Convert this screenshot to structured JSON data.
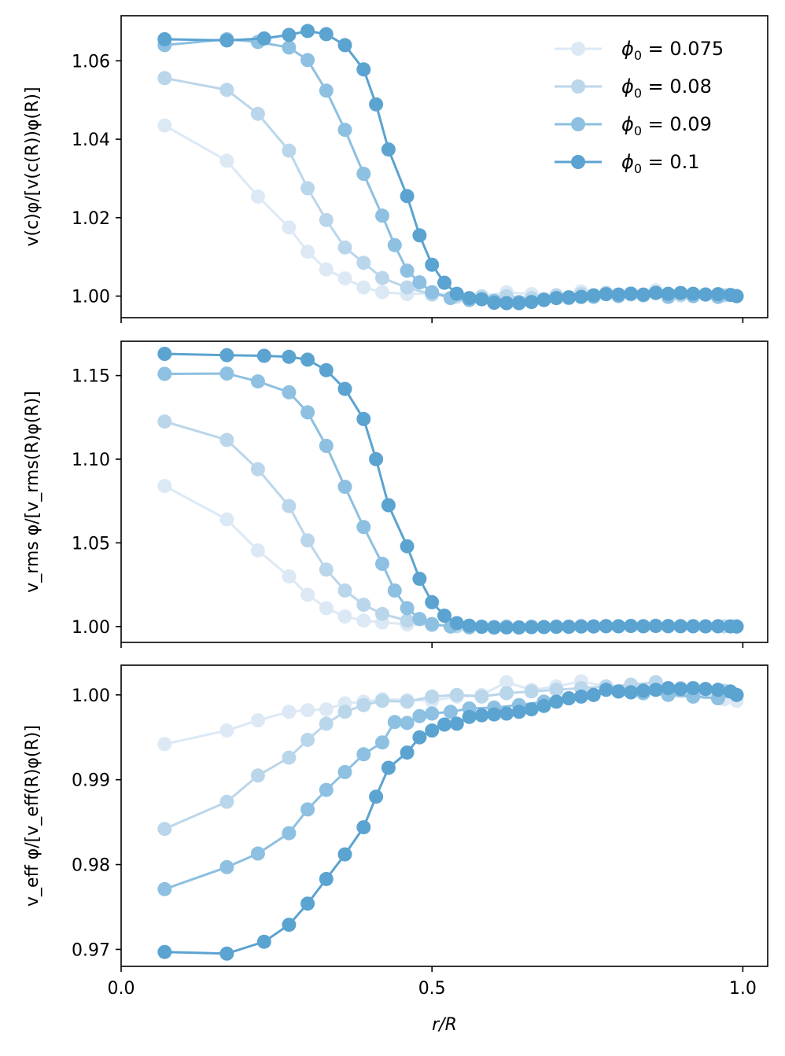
{
  "chart_data": [
    {
      "type": "line",
      "ylabel": "v(c)φ/[v(c(R))φ(R)]",
      "ylim": [
        0.9945,
        1.0715
      ],
      "yticks": [
        "1.00",
        "1.02",
        "1.04",
        "1.06"
      ],
      "ytick_values": [
        1.0,
        1.02,
        1.04,
        1.06
      ],
      "legend_position": "top-right",
      "legend": [
        {
          "label": "ϕ0 = 0.075",
          "base": "ϕ",
          "sub": "0",
          "value": " = 0.075"
        },
        {
          "label": "ϕ0 = 0.08",
          "base": "ϕ",
          "sub": "0",
          "value": " = 0.08"
        },
        {
          "label": "ϕ0 = 0.09",
          "base": "ϕ",
          "sub": "0",
          "value": " = 0.09"
        },
        {
          "label": "ϕ0 = 0.1",
          "base": "ϕ",
          "sub": "0",
          "value": " = 0.1"
        }
      ],
      "series": [
        {
          "name": "ϕ0 = 0.075",
          "color": "#dce9f5",
          "x": [
            0.07,
            0.17,
            0.22,
            0.27,
            0.3,
            0.33,
            0.36,
            0.39,
            0.42,
            0.46,
            0.5,
            0.54,
            0.58,
            0.62,
            0.66,
            0.7,
            0.74,
            0.78,
            0.82,
            0.86,
            0.9,
            0.94,
            0.97,
            0.99
          ],
          "y": [
            1.0435,
            1.0345,
            1.0254,
            1.0175,
            1.0113,
            1.0068,
            1.0045,
            1.0022,
            1.001,
            1.0005,
            1.0008,
            1.0002,
            1.0,
            1.001,
            1.0005,
            1.0002,
            1.0012,
            1.0006,
            1.0008,
            1.0015,
            1.0008,
            1.0005,
            1.0002,
            1.0
          ]
        },
        {
          "name": "ϕ0 = 0.08",
          "color": "#bad6eb",
          "x": [
            0.07,
            0.17,
            0.22,
            0.27,
            0.3,
            0.33,
            0.36,
            0.39,
            0.42,
            0.46,
            0.5,
            0.54,
            0.58,
            0.62,
            0.66,
            0.7,
            0.74,
            0.78,
            0.82,
            0.86,
            0.9,
            0.94,
            0.97,
            0.99
          ],
          "y": [
            1.0556,
            1.0526,
            1.0465,
            1.0371,
            1.0275,
            1.0194,
            1.0124,
            1.0085,
            1.0046,
            1.0022,
            1.0004,
            0.9999,
            0.9998,
            1.0,
            0.9995,
            1.0002,
            1.0005,
            1.0008,
            1.0004,
            1.001,
            1.0002,
            1.0004,
            1.0002,
            1.0
          ]
        },
        {
          "name": "ϕ0 = 0.09",
          "color": "#8dc0e1",
          "x": [
            0.07,
            0.17,
            0.22,
            0.27,
            0.3,
            0.33,
            0.36,
            0.39,
            0.42,
            0.44,
            0.46,
            0.48,
            0.5,
            0.53,
            0.56,
            0.6,
            0.64,
            0.68,
            0.72,
            0.76,
            0.8,
            0.84,
            0.88,
            0.92,
            0.96,
            0.99
          ],
          "y": [
            1.064,
            1.0655,
            1.0648,
            1.0634,
            1.0602,
            1.0524,
            1.0424,
            1.0312,
            1.0205,
            1.013,
            1.0065,
            1.0035,
            1.001,
            0.9995,
            0.999,
            0.9988,
            0.9985,
            0.9992,
            0.9995,
            0.9998,
            1.0,
            1.0002,
            0.9998,
            1.0,
            0.9998,
            1.0
          ]
        },
        {
          "name": "ϕ0 = 0.1",
          "color": "#5ba3d0",
          "x": [
            0.07,
            0.17,
            0.23,
            0.27,
            0.3,
            0.33,
            0.36,
            0.39,
            0.41,
            0.43,
            0.46,
            0.48,
            0.5,
            0.52,
            0.54,
            0.56,
            0.58,
            0.6,
            0.62,
            0.64,
            0.66,
            0.68,
            0.7,
            0.72,
            0.74,
            0.76,
            0.78,
            0.8,
            0.82,
            0.84,
            0.86,
            0.88,
            0.9,
            0.92,
            0.94,
            0.96,
            0.98,
            0.99
          ],
          "y": [
            1.0655,
            1.0652,
            1.0657,
            1.0666,
            1.0676,
            1.0668,
            1.064,
            1.0578,
            1.0489,
            1.0374,
            1.0255,
            1.0155,
            1.008,
            1.0034,
            1.0006,
            0.9995,
            0.9992,
            0.9983,
            0.9982,
            0.9982,
            0.9985,
            0.999,
            0.9995,
            0.9997,
            0.9998,
            1.0002,
            1.0005,
            1.0004,
            1.0006,
            1.0004,
            1.0008,
            1.0006,
            1.0008,
            1.0006,
            1.0004,
            1.0005,
            1.0003,
            1.0
          ]
        }
      ]
    },
    {
      "type": "line",
      "ylabel": "v_rms φ/[v_rms(R)φ(R)]",
      "ylim": [
        0.9905,
        1.1705
      ],
      "yticks": [
        "1.00",
        "1.05",
        "1.10",
        "1.15"
      ],
      "ytick_values": [
        1.0,
        1.05,
        1.1,
        1.15
      ],
      "series": [
        {
          "name": "ϕ0 = 0.075",
          "color": "#dce9f5",
          "x": [
            0.07,
            0.17,
            0.22,
            0.27,
            0.3,
            0.33,
            0.36,
            0.39,
            0.42,
            0.46,
            0.5,
            0.54,
            0.58,
            0.62,
            0.66,
            0.7,
            0.74,
            0.78,
            0.82,
            0.86,
            0.9,
            0.94,
            0.97,
            0.99
          ],
          "y": [
            1.084,
            1.064,
            1.0455,
            1.03,
            1.019,
            1.011,
            1.006,
            1.0035,
            1.0025,
            1.0012,
            1.0008,
            1.0004,
            1.0002,
            1.0005,
            1.0003,
            1.0002,
            1.0006,
            1.0004,
            1.0004,
            1.0006,
            1.0003,
            1.0002,
            1.0001,
            1.0
          ]
        },
        {
          "name": "ϕ0 = 0.08",
          "color": "#bad6eb",
          "x": [
            0.07,
            0.17,
            0.22,
            0.27,
            0.3,
            0.33,
            0.36,
            0.39,
            0.42,
            0.46,
            0.5,
            0.54,
            0.58,
            0.62,
            0.66,
            0.7,
            0.74,
            0.78,
            0.82,
            0.86,
            0.9,
            0.94,
            0.97,
            0.99
          ],
          "y": [
            1.1225,
            1.1115,
            1.094,
            1.072,
            1.0515,
            1.034,
            1.0215,
            1.013,
            1.0075,
            1.0035,
            1.001,
            1.0002,
            0.9999,
            0.9998,
            0.9997,
            0.9999,
            1.0001,
            1.0002,
            1.0003,
            1.0004,
            1.0002,
            1.0002,
            1.0001,
            1.0
          ]
        },
        {
          "name": "ϕ0 = 0.09",
          "color": "#8dc0e1",
          "x": [
            0.07,
            0.17,
            0.22,
            0.27,
            0.3,
            0.33,
            0.36,
            0.39,
            0.42,
            0.44,
            0.46,
            0.48,
            0.5,
            0.53,
            0.56,
            0.6,
            0.64,
            0.68,
            0.72,
            0.76,
            0.8,
            0.84,
            0.88,
            0.92,
            0.96,
            0.99
          ],
          "y": [
            1.151,
            1.1512,
            1.1465,
            1.14,
            1.128,
            1.108,
            1.0835,
            1.0595,
            1.0375,
            1.0215,
            1.011,
            1.0045,
            1.0015,
            1.0,
            0.9995,
            0.9993,
            0.9994,
            0.9996,
            0.9998,
            1.0,
            1.0001,
            1.0002,
            1.0001,
            1.0002,
            1.0001,
            1.0
          ]
        },
        {
          "name": "ϕ0 = 0.1",
          "color": "#5ba3d0",
          "x": [
            0.07,
            0.17,
            0.23,
            0.27,
            0.3,
            0.33,
            0.36,
            0.39,
            0.41,
            0.43,
            0.46,
            0.48,
            0.5,
            0.52,
            0.54,
            0.56,
            0.58,
            0.6,
            0.62,
            0.64,
            0.66,
            0.68,
            0.7,
            0.72,
            0.74,
            0.76,
            0.78,
            0.8,
            0.82,
            0.84,
            0.86,
            0.88,
            0.9,
            0.92,
            0.94,
            0.96,
            0.98,
            0.99
          ],
          "y": [
            1.163,
            1.1622,
            1.1618,
            1.1612,
            1.1595,
            1.1532,
            1.142,
            1.124,
            1.1,
            1.0725,
            1.048,
            1.0285,
            1.0145,
            1.0065,
            1.002,
            1.0005,
            0.9998,
            0.9996,
            0.9995,
            0.9995,
            0.9996,
            0.9997,
            0.9998,
            0.9999,
            1.0,
            1.0001,
            1.0002,
            1.0002,
            1.0003,
            1.0002,
            1.0003,
            1.0003,
            1.0002,
            1.0002,
            1.0001,
            1.0002,
            1.0001,
            1.0
          ]
        }
      ]
    },
    {
      "type": "line",
      "ylabel": "v_eff φ/[v_eff(R)φ(R)]",
      "ylim": [
        0.968,
        1.0035
      ],
      "yticks": [
        "0.97",
        "0.98",
        "0.99",
        "1.00"
      ],
      "ytick_values": [
        0.97,
        0.98,
        0.99,
        1.0
      ],
      "xlabel": "r/R",
      "xlim": [
        0.0,
        1.04
      ],
      "xticks": [
        "0.0",
        "0.5",
        "1.0"
      ],
      "xtick_values": [
        0.0,
        0.5,
        1.0
      ],
      "series": [
        {
          "name": "ϕ0 = 0.075",
          "color": "#dce9f5",
          "x": [
            0.07,
            0.17,
            0.22,
            0.27,
            0.3,
            0.33,
            0.36,
            0.39,
            0.42,
            0.46,
            0.5,
            0.54,
            0.58,
            0.62,
            0.66,
            0.7,
            0.74,
            0.78,
            0.82,
            0.86,
            0.9,
            0.94,
            0.97,
            0.99
          ],
          "y": [
            0.9942,
            0.9958,
            0.997,
            0.998,
            0.9982,
            0.9983,
            0.999,
            0.9992,
            0.9995,
            0.9994,
            0.9993,
            0.9998,
            1.0,
            1.0015,
            1.0006,
            1.001,
            1.0016,
            1.001,
            1.0008,
            1.0012,
            1.0004,
            1.0003,
            0.9995,
            0.9993
          ]
        },
        {
          "name": "ϕ0 = 0.08",
          "color": "#bad6eb",
          "x": [
            0.07,
            0.17,
            0.22,
            0.27,
            0.3,
            0.33,
            0.36,
            0.39,
            0.42,
            0.46,
            0.5,
            0.54,
            0.58,
            0.62,
            0.66,
            0.7,
            0.74,
            0.78,
            0.82,
            0.86,
            0.9,
            0.94,
            0.97,
            0.99
          ],
          "y": [
            0.9842,
            0.9874,
            0.9905,
            0.9926,
            0.9947,
            0.9966,
            0.998,
            0.9988,
            0.9993,
            0.9992,
            0.9998,
            1.0,
            0.9998,
            1.0002,
            1.0004,
            1.0006,
            1.0008,
            1.001,
            1.0012,
            1.0015,
            1.0008,
            1.0006,
            1.0005,
            1.0
          ]
        },
        {
          "name": "ϕ0 = 0.09",
          "color": "#8dc0e1",
          "x": [
            0.07,
            0.17,
            0.22,
            0.27,
            0.3,
            0.33,
            0.36,
            0.39,
            0.42,
            0.44,
            0.46,
            0.48,
            0.5,
            0.53,
            0.56,
            0.6,
            0.64,
            0.68,
            0.72,
            0.76,
            0.8,
            0.84,
            0.88,
            0.92,
            0.96,
            0.99
          ],
          "y": [
            0.9771,
            0.9797,
            0.9813,
            0.9837,
            0.9865,
            0.9888,
            0.9909,
            0.993,
            0.9944,
            0.9968,
            0.9967,
            0.9975,
            0.9978,
            0.998,
            0.9984,
            0.9985,
            0.9988,
            0.9992,
            0.9996,
            1.0,
            1.0004,
            1.0002,
            1.0,
            0.9998,
            0.9996,
            1.0
          ]
        },
        {
          "name": "ϕ0 = 0.1",
          "color": "#5ba3d0",
          "x": [
            0.07,
            0.17,
            0.23,
            0.27,
            0.3,
            0.33,
            0.36,
            0.39,
            0.41,
            0.43,
            0.46,
            0.48,
            0.5,
            0.52,
            0.54,
            0.56,
            0.58,
            0.6,
            0.62,
            0.64,
            0.66,
            0.68,
            0.7,
            0.72,
            0.74,
            0.76,
            0.78,
            0.8,
            0.82,
            0.84,
            0.86,
            0.88,
            0.9,
            0.92,
            0.94,
            0.96,
            0.98,
            0.99
          ],
          "y": [
            0.9697,
            0.9695,
            0.9709,
            0.9729,
            0.9754,
            0.9783,
            0.9812,
            0.9844,
            0.988,
            0.9914,
            0.9932,
            0.995,
            0.9958,
            0.9965,
            0.9966,
            0.9974,
            0.9976,
            0.9977,
            0.9978,
            0.998,
            0.9983,
            0.9987,
            0.9992,
            0.9996,
            0.9998,
            1.0,
            1.0006,
            1.0004,
            1.0003,
            1.0005,
            1.0006,
            1.0008,
            1.0007,
            1.0008,
            1.0007,
            1.0006,
            1.0004,
            1.0
          ]
        }
      ]
    }
  ]
}
